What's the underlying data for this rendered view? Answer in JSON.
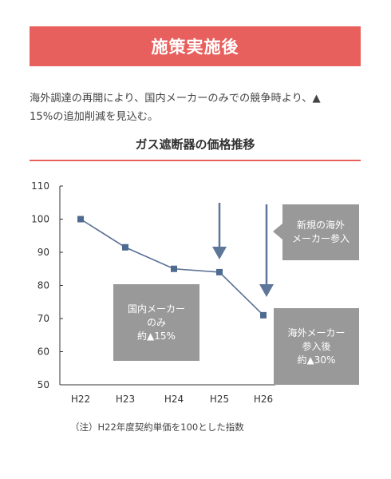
{
  "heading": "施策実施後",
  "description": {
    "line1": "海外調達の再開により、国内メーカーのみでの競争時より、▲",
    "line2": "15%の追加削減を見込む。"
  },
  "chart_data": {
    "type": "line",
    "title": "ガス遮断器の価格推移",
    "categories": [
      "H22",
      "H23",
      "H24",
      "H25",
      "H26"
    ],
    "values": [
      100,
      91.5,
      85,
      84,
      71
    ],
    "ylim": [
      50,
      110
    ],
    "yticks": [
      110,
      100,
      90,
      80,
      70,
      60,
      50
    ],
    "xlabel": "",
    "ylabel": "",
    "grid": false,
    "colors": {
      "line": "#5a7094",
      "marker": "#4e6a90",
      "arrow": "#5e7699",
      "box": "#999999"
    },
    "annotations": {
      "new_overseas": [
        "新規の海外",
        "メーカー参入"
      ],
      "domestic_only": [
        "国内メーカー",
        "のみ",
        "約▲15%"
      ],
      "after_overseas": [
        "海外メーカー",
        "参入後",
        "約▲30%"
      ]
    }
  },
  "footnote": "（注）H22年度契約単価を100とした指数"
}
